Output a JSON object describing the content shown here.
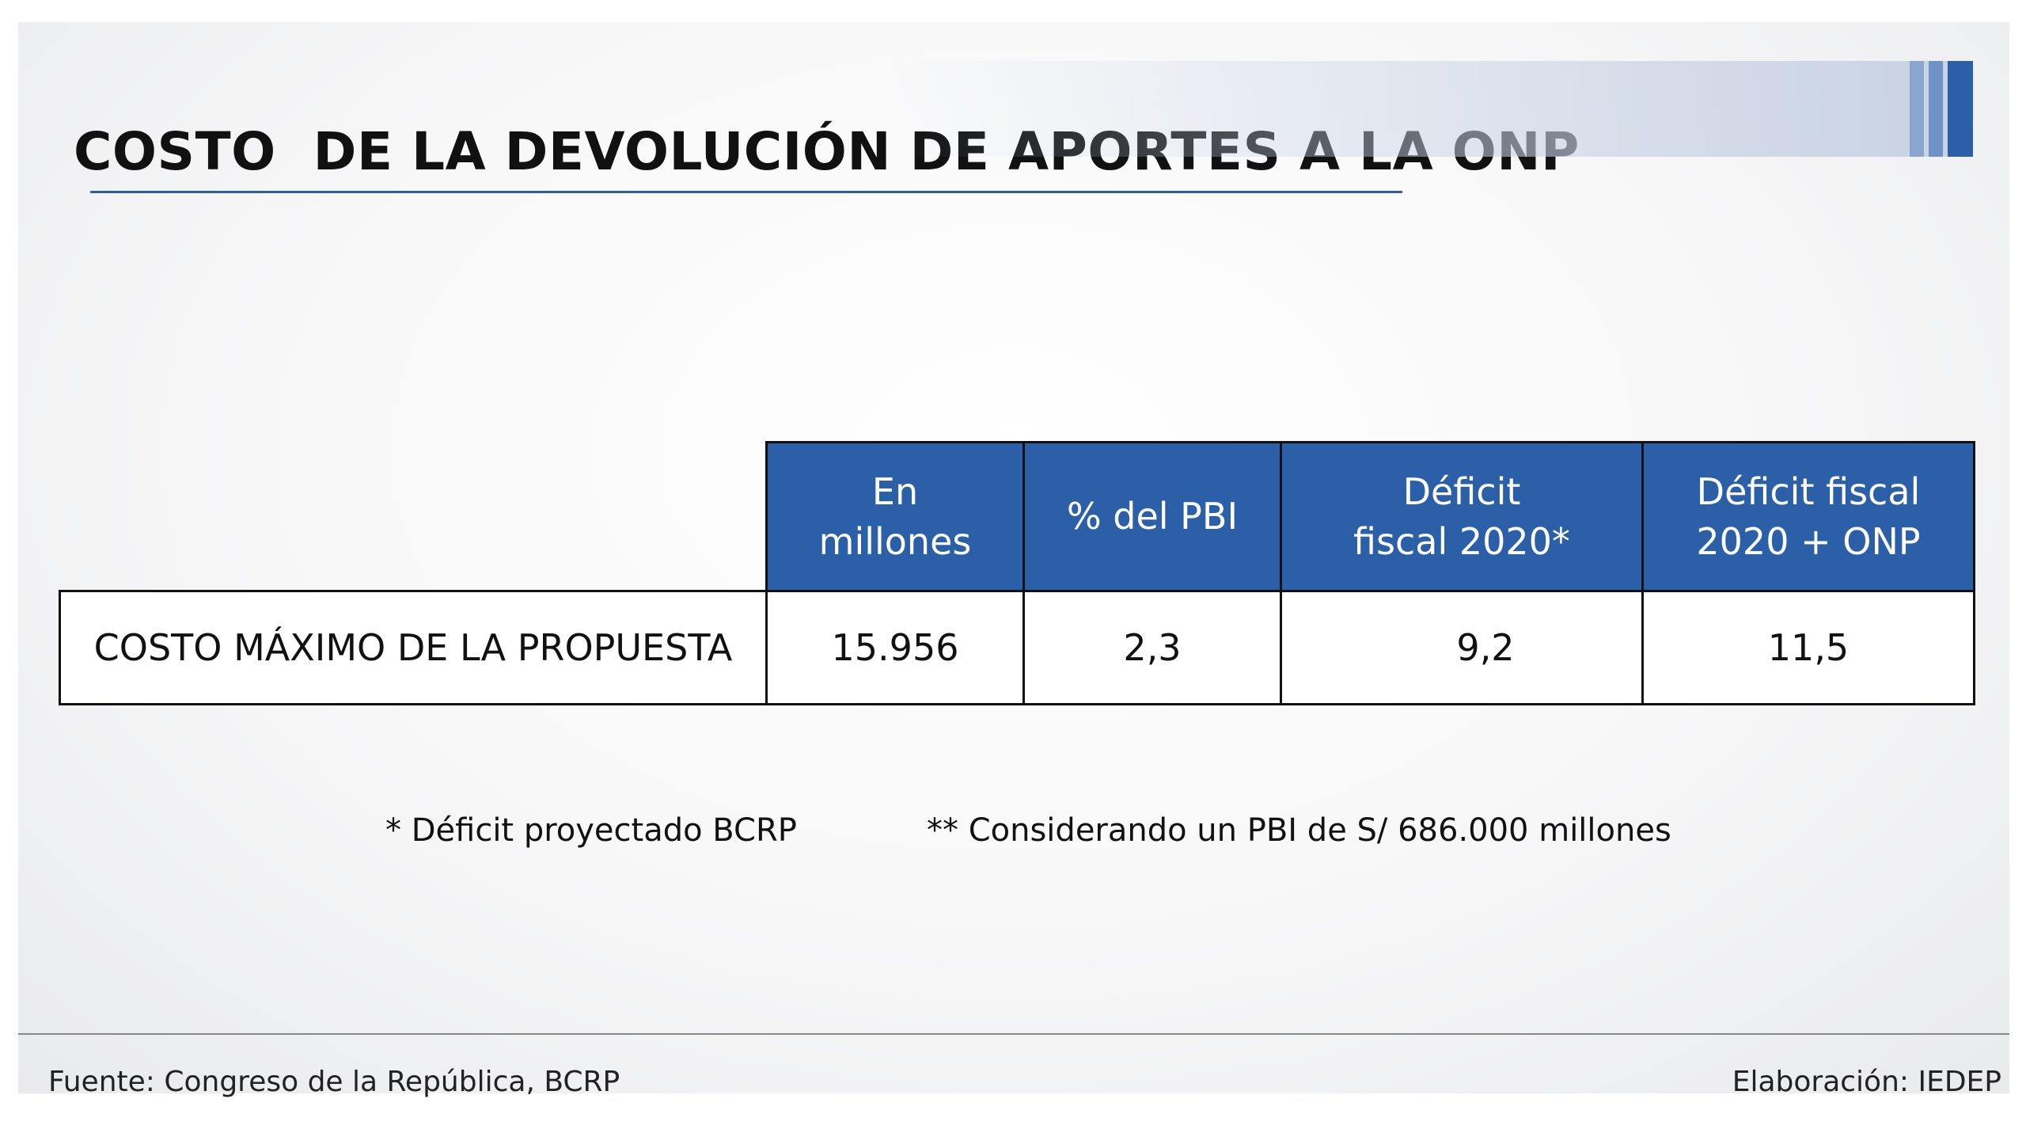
{
  "header": {
    "title": "COSTO  DE LA DEVOLUCIÓN DE APORTES A LA ONP"
  },
  "table": {
    "columns": [
      "En millones",
      "% del PBI",
      "Déficit fiscal 2020*",
      "Déficit fiscal 2020 + ONP"
    ],
    "rows": [
      [
        "COSTO MÁXIMO DE LA PROPUESTA",
        "15.956",
        "2,3",
        "9,2",
        "11,5"
      ]
    ]
  },
  "notes": [
    "* Déficit proyectado BCRP",
    "** Considerando un PBI de S/ 686.000 millones"
  ],
  "footer": {
    "source": "Fuente: Congreso de la República, BCRP",
    "credit": "Elaboración: IEDEP"
  }
}
